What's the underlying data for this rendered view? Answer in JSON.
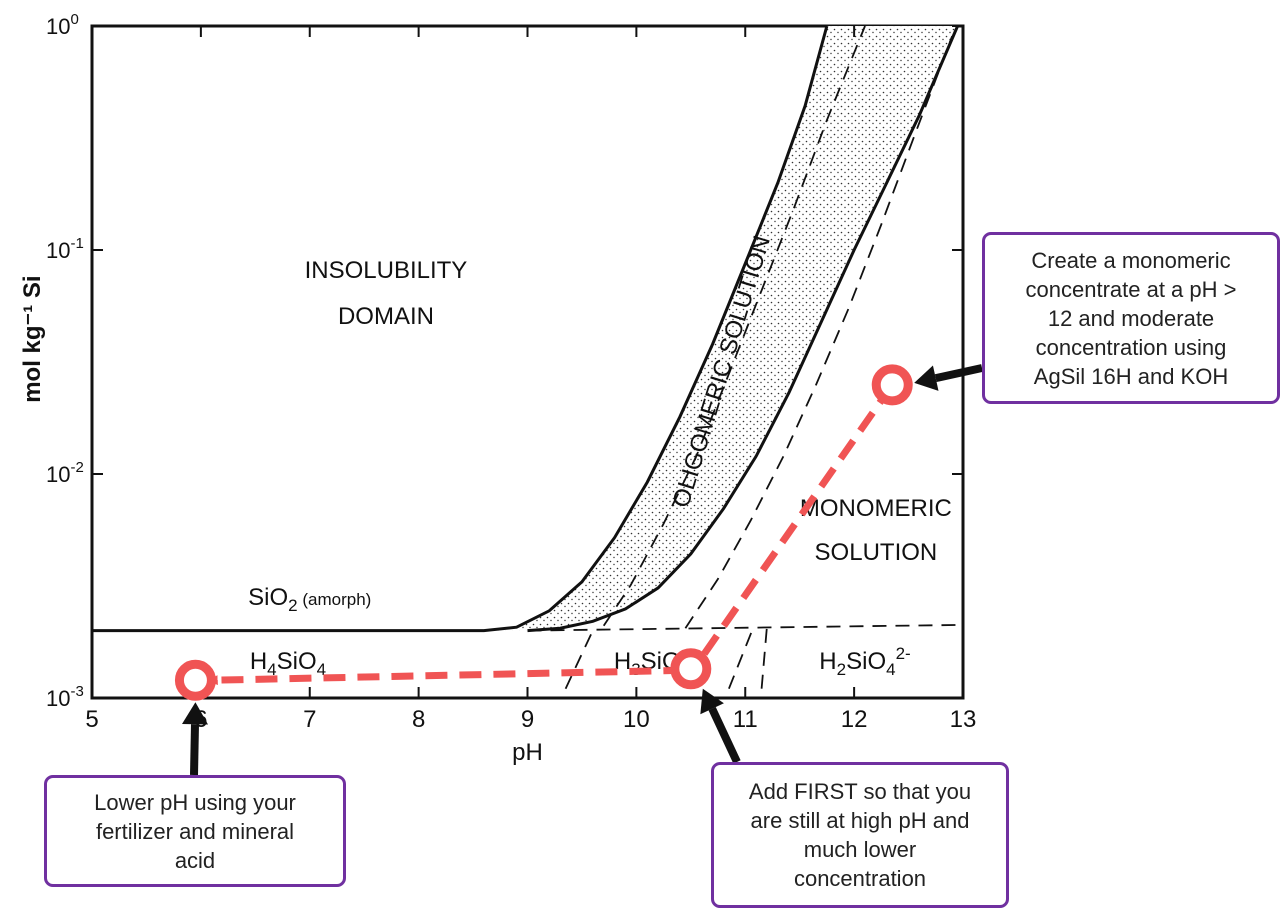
{
  "chart_data": {
    "type": "line",
    "xlabel": "pH",
    "ylabel": "mol kg⁻¹  Si",
    "xlim": [
      5,
      13
    ],
    "ylim": [
      0.001,
      1
    ],
    "yscale": "log",
    "x_ticks": [
      "5",
      "6",
      "7",
      "8",
      "9",
      "10",
      "11",
      "12",
      "13"
    ],
    "y_ticks": [
      {
        "value": 1,
        "base": "10",
        "exp": "0"
      },
      {
        "value": 0.1,
        "base": "10",
        "exp": "-1"
      },
      {
        "value": 0.01,
        "base": "10",
        "exp": "-2"
      },
      {
        "value": 0.001,
        "base": "10",
        "exp": "-3"
      }
    ],
    "series": [
      {
        "style": "solid",
        "points": [
          [
            5,
            0.002
          ],
          [
            8.6,
            0.002
          ],
          [
            8.9,
            0.00207
          ],
          [
            9.2,
            0.00245
          ],
          [
            9.5,
            0.0033
          ],
          [
            9.8,
            0.0052
          ],
          [
            10.1,
            0.0092
          ],
          [
            10.4,
            0.018
          ],
          [
            10.7,
            0.038
          ],
          [
            11.0,
            0.087
          ],
          [
            11.3,
            0.2
          ],
          [
            11.55,
            0.44
          ],
          [
            11.75,
            1
          ]
        ]
      },
      {
        "style": "solid",
        "points": [
          [
            9.0,
            0.002
          ],
          [
            9.3,
            0.00205
          ],
          [
            9.6,
            0.0022
          ],
          [
            9.9,
            0.0025
          ],
          [
            10.2,
            0.0031
          ],
          [
            10.5,
            0.0044
          ],
          [
            10.8,
            0.007
          ],
          [
            11.1,
            0.012
          ],
          [
            11.4,
            0.023
          ],
          [
            11.7,
            0.048
          ],
          [
            12.0,
            0.1
          ],
          [
            12.3,
            0.2
          ],
          [
            12.6,
            0.4
          ],
          [
            12.95,
            1
          ]
        ]
      },
      {
        "style": "dashed",
        "points": [
          [
            9.7,
            0.0021
          ],
          [
            9.95,
            0.0032
          ],
          [
            10.25,
            0.006
          ],
          [
            10.55,
            0.012
          ],
          [
            10.85,
            0.028
          ],
          [
            11.15,
            0.066
          ],
          [
            11.45,
            0.155
          ],
          [
            11.75,
            0.38
          ],
          [
            12.1,
            1
          ]
        ]
      },
      {
        "style": "dashed",
        "points": [
          [
            10.45,
            0.00205
          ],
          [
            10.75,
            0.0034
          ],
          [
            11.05,
            0.0062
          ],
          [
            11.35,
            0.012
          ],
          [
            11.65,
            0.025
          ],
          [
            11.95,
            0.055
          ],
          [
            12.25,
            0.13
          ],
          [
            12.55,
            0.32
          ],
          [
            12.9,
            0.9
          ]
        ]
      },
      {
        "style": "dashed",
        "points": [
          [
            9.0,
            0.002
          ],
          [
            13,
            0.00212
          ]
        ]
      },
      {
        "style": "dashed",
        "points": [
          [
            9.35,
            0.0011
          ],
          [
            9.6,
            0.002
          ]
        ]
      },
      {
        "style": "dashed",
        "points": [
          [
            10.85,
            0.0011
          ],
          [
            11.08,
            0.0021
          ]
        ]
      },
      {
        "style": "dashed",
        "points": [
          [
            11.15,
            0.0011
          ],
          [
            11.2,
            0.0021
          ]
        ]
      }
    ],
    "regions": [
      {
        "label_lines": [
          "INSOLUBILITY",
          "DOMAIN"
        ],
        "x": 7.7,
        "y": 0.075
      },
      {
        "label_lines": [
          "OLIGOMERIC  SOLUTION"
        ],
        "x": 10.85,
        "y": 0.028,
        "rotation_deg": -73
      },
      {
        "label_lines": [
          "MONOMERIC",
          "SOLUTION"
        ],
        "x": 12.2,
        "y": 0.0065
      },
      {
        "label": "SiO",
        "sub": "2",
        "suffix": "(amorph)",
        "x": 7.0,
        "y": 0.0026
      },
      {
        "label": "H",
        "sub1": "4",
        "mid": "SiO",
        "sub2": "4",
        "x": 6.8,
        "y": 0.00135
      },
      {
        "label": "H",
        "sub1": "3",
        "mid": "SiO",
        "x": 10.1,
        "y": 0.00135
      },
      {
        "label": "H",
        "sub1": "2",
        "mid": "SiO",
        "sub2": "4",
        "sup": "2-",
        "x": 12.1,
        "y": 0.00135
      }
    ],
    "markers": [
      {
        "x": 12.35,
        "y": 0.025
      },
      {
        "x": 10.5,
        "y": 0.00135
      },
      {
        "x": 5.95,
        "y": 0.0012
      }
    ],
    "path_arrows": [
      {
        "from": [
          12.35,
          0.025
        ],
        "to": [
          10.55,
          0.0014
        ]
      },
      {
        "from": [
          10.45,
          0.00133
        ],
        "to": [
          6.1,
          0.0012
        ]
      }
    ]
  },
  "colors": {
    "marker": "#f05454",
    "callout_border": "#7030a0",
    "curve": "#111111",
    "arrow": "#111111"
  },
  "callouts": {
    "monomeric": [
      "Create a monomeric",
      "concentrate at a pH >",
      "12 and moderate",
      "concentration using",
      "AgSil 16H and KOH"
    ],
    "lower_ph": [
      "Lower pH using your",
      "fertilizer and mineral",
      "acid"
    ],
    "add_first": [
      "Add FIRST so that you",
      "are still at high pH and",
      "much lower",
      "concentration"
    ]
  }
}
